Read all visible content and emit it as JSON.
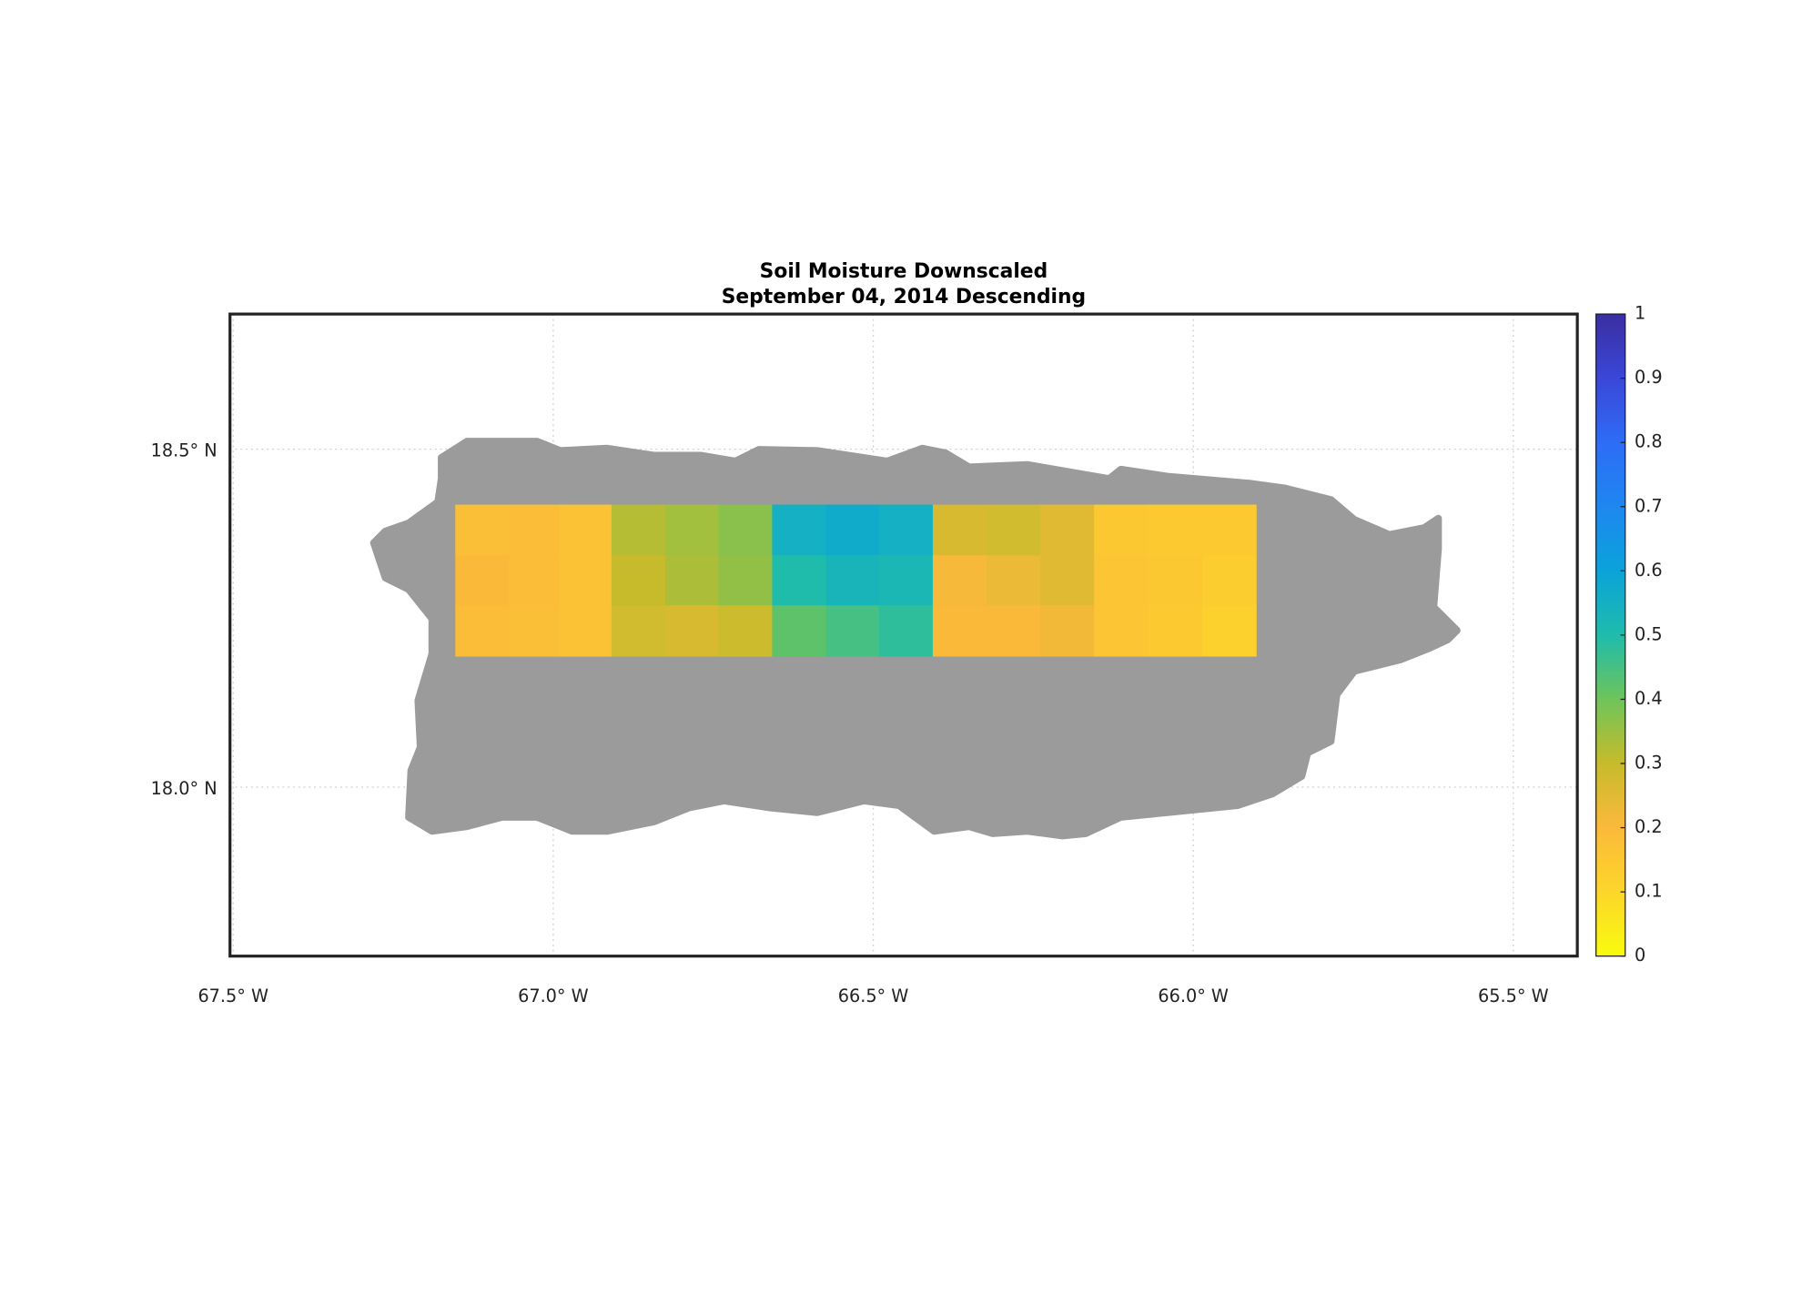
{
  "chart_data": {
    "type": "map",
    "title": "Soil Moisture Downscaled",
    "subtitle": "September 04, 2014 Descending",
    "xlim": [
      -67.505,
      -65.4
    ],
    "ylim": [
      17.75,
      18.7
    ],
    "xticks": [
      {
        "value": -67.5,
        "label": "67.5° W"
      },
      {
        "value": -67.0,
        "label": "67.0° W"
      },
      {
        "value": -66.5,
        "label": "66.5° W"
      },
      {
        "value": -66.0,
        "label": "66.0° W"
      },
      {
        "value": -65.5,
        "label": "65.5° W"
      }
    ],
    "yticks": [
      {
        "value": 18.0,
        "label": "18.0° N"
      },
      {
        "value": 18.5,
        "label": "18.5° N"
      }
    ],
    "grid": true,
    "clim": [
      0,
      1
    ],
    "colorbar_ticks": [
      0,
      0.1,
      0.2,
      0.3,
      0.4,
      0.5,
      0.6,
      0.7,
      0.8,
      0.9,
      1
    ],
    "colormap": [
      "#f9fb0e",
      "#fcd62a",
      "#fbb93a",
      "#c7bb2b",
      "#6ec45a",
      "#1fbcac",
      "#0aa3d9",
      "#1e87f0",
      "#2e6cf6",
      "#3a47d8",
      "#3b2ea0"
    ],
    "lon_edges": [
      -67.153,
      -67.07,
      -66.99,
      -66.909,
      -66.825,
      -66.742,
      -66.658,
      -66.574,
      -66.491,
      -66.407,
      -66.323,
      -66.239,
      -66.155,
      -66.071,
      -65.986,
      -65.902
    ],
    "lat_edges": [
      18.418,
      18.343,
      18.269,
      18.194
    ],
    "values": [
      [
        0.18,
        0.19,
        0.17,
        0.32,
        0.34,
        0.37,
        0.55,
        0.57,
        0.55,
        0.27,
        0.28,
        0.25,
        0.15,
        0.14,
        0.14
      ],
      [
        0.2,
        0.19,
        0.17,
        0.3,
        0.33,
        0.36,
        0.5,
        0.53,
        0.52,
        0.21,
        0.23,
        0.25,
        0.16,
        0.15,
        0.13
      ],
      [
        0.19,
        0.18,
        0.17,
        0.28,
        0.27,
        0.29,
        0.42,
        0.45,
        0.48,
        0.2,
        0.2,
        0.22,
        0.16,
        0.14,
        0.12
      ]
    ]
  }
}
